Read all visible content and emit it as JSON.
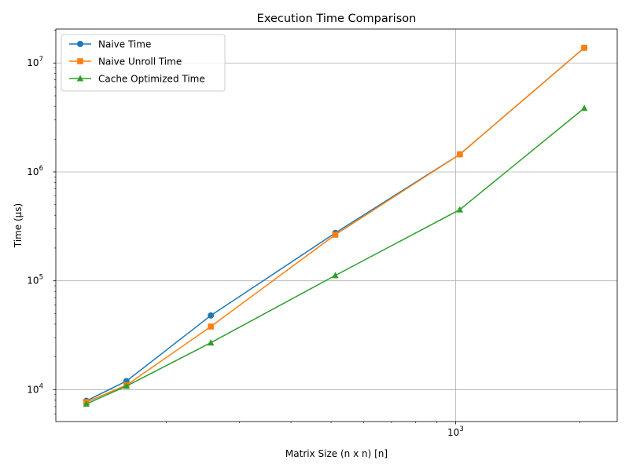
{
  "chart_data": {
    "type": "line",
    "title": "Execution Time Comparison",
    "xlabel": "Matrix Size (n x n) [n]",
    "ylabel": "Time (µs)",
    "x_scale": "log",
    "y_scale": "log",
    "xlim": [
      108,
      2460
    ],
    "ylim": [
      5100,
      20500000
    ],
    "x_major_ticks": [
      {
        "value": 1000,
        "base": "10",
        "exp": "3"
      }
    ],
    "x_minor_ticks": [
      200,
      300,
      400,
      500,
      600,
      700,
      800,
      900,
      2000
    ],
    "y_major_ticks": [
      {
        "value": 10000,
        "base": "10",
        "exp": "4"
      },
      {
        "value": 100000,
        "base": "10",
        "exp": "5"
      },
      {
        "value": 1000000,
        "base": "10",
        "exp": "6"
      },
      {
        "value": 10000000,
        "base": "10",
        "exp": "7"
      }
    ],
    "grid": true,
    "legend_position": "top-left",
    "x": [
      128,
      160,
      256,
      512,
      1024,
      2048
    ],
    "series": [
      {
        "name": "Naive Time",
        "color": "#1f77b4",
        "marker": "circle",
        "values": [
          7900,
          12000,
          48000,
          275000,
          1450000,
          13800000
        ]
      },
      {
        "name": "Naive Unroll Time",
        "color": "#ff7f0e",
        "marker": "square",
        "values": [
          7700,
          11000,
          38000,
          265000,
          1450000,
          13800000
        ]
      },
      {
        "name": "Cache Optimized Time",
        "color": "#2ca02c",
        "marker": "triangle",
        "values": [
          7400,
          10800,
          27000,
          112000,
          450000,
          3850000
        ]
      }
    ]
  }
}
